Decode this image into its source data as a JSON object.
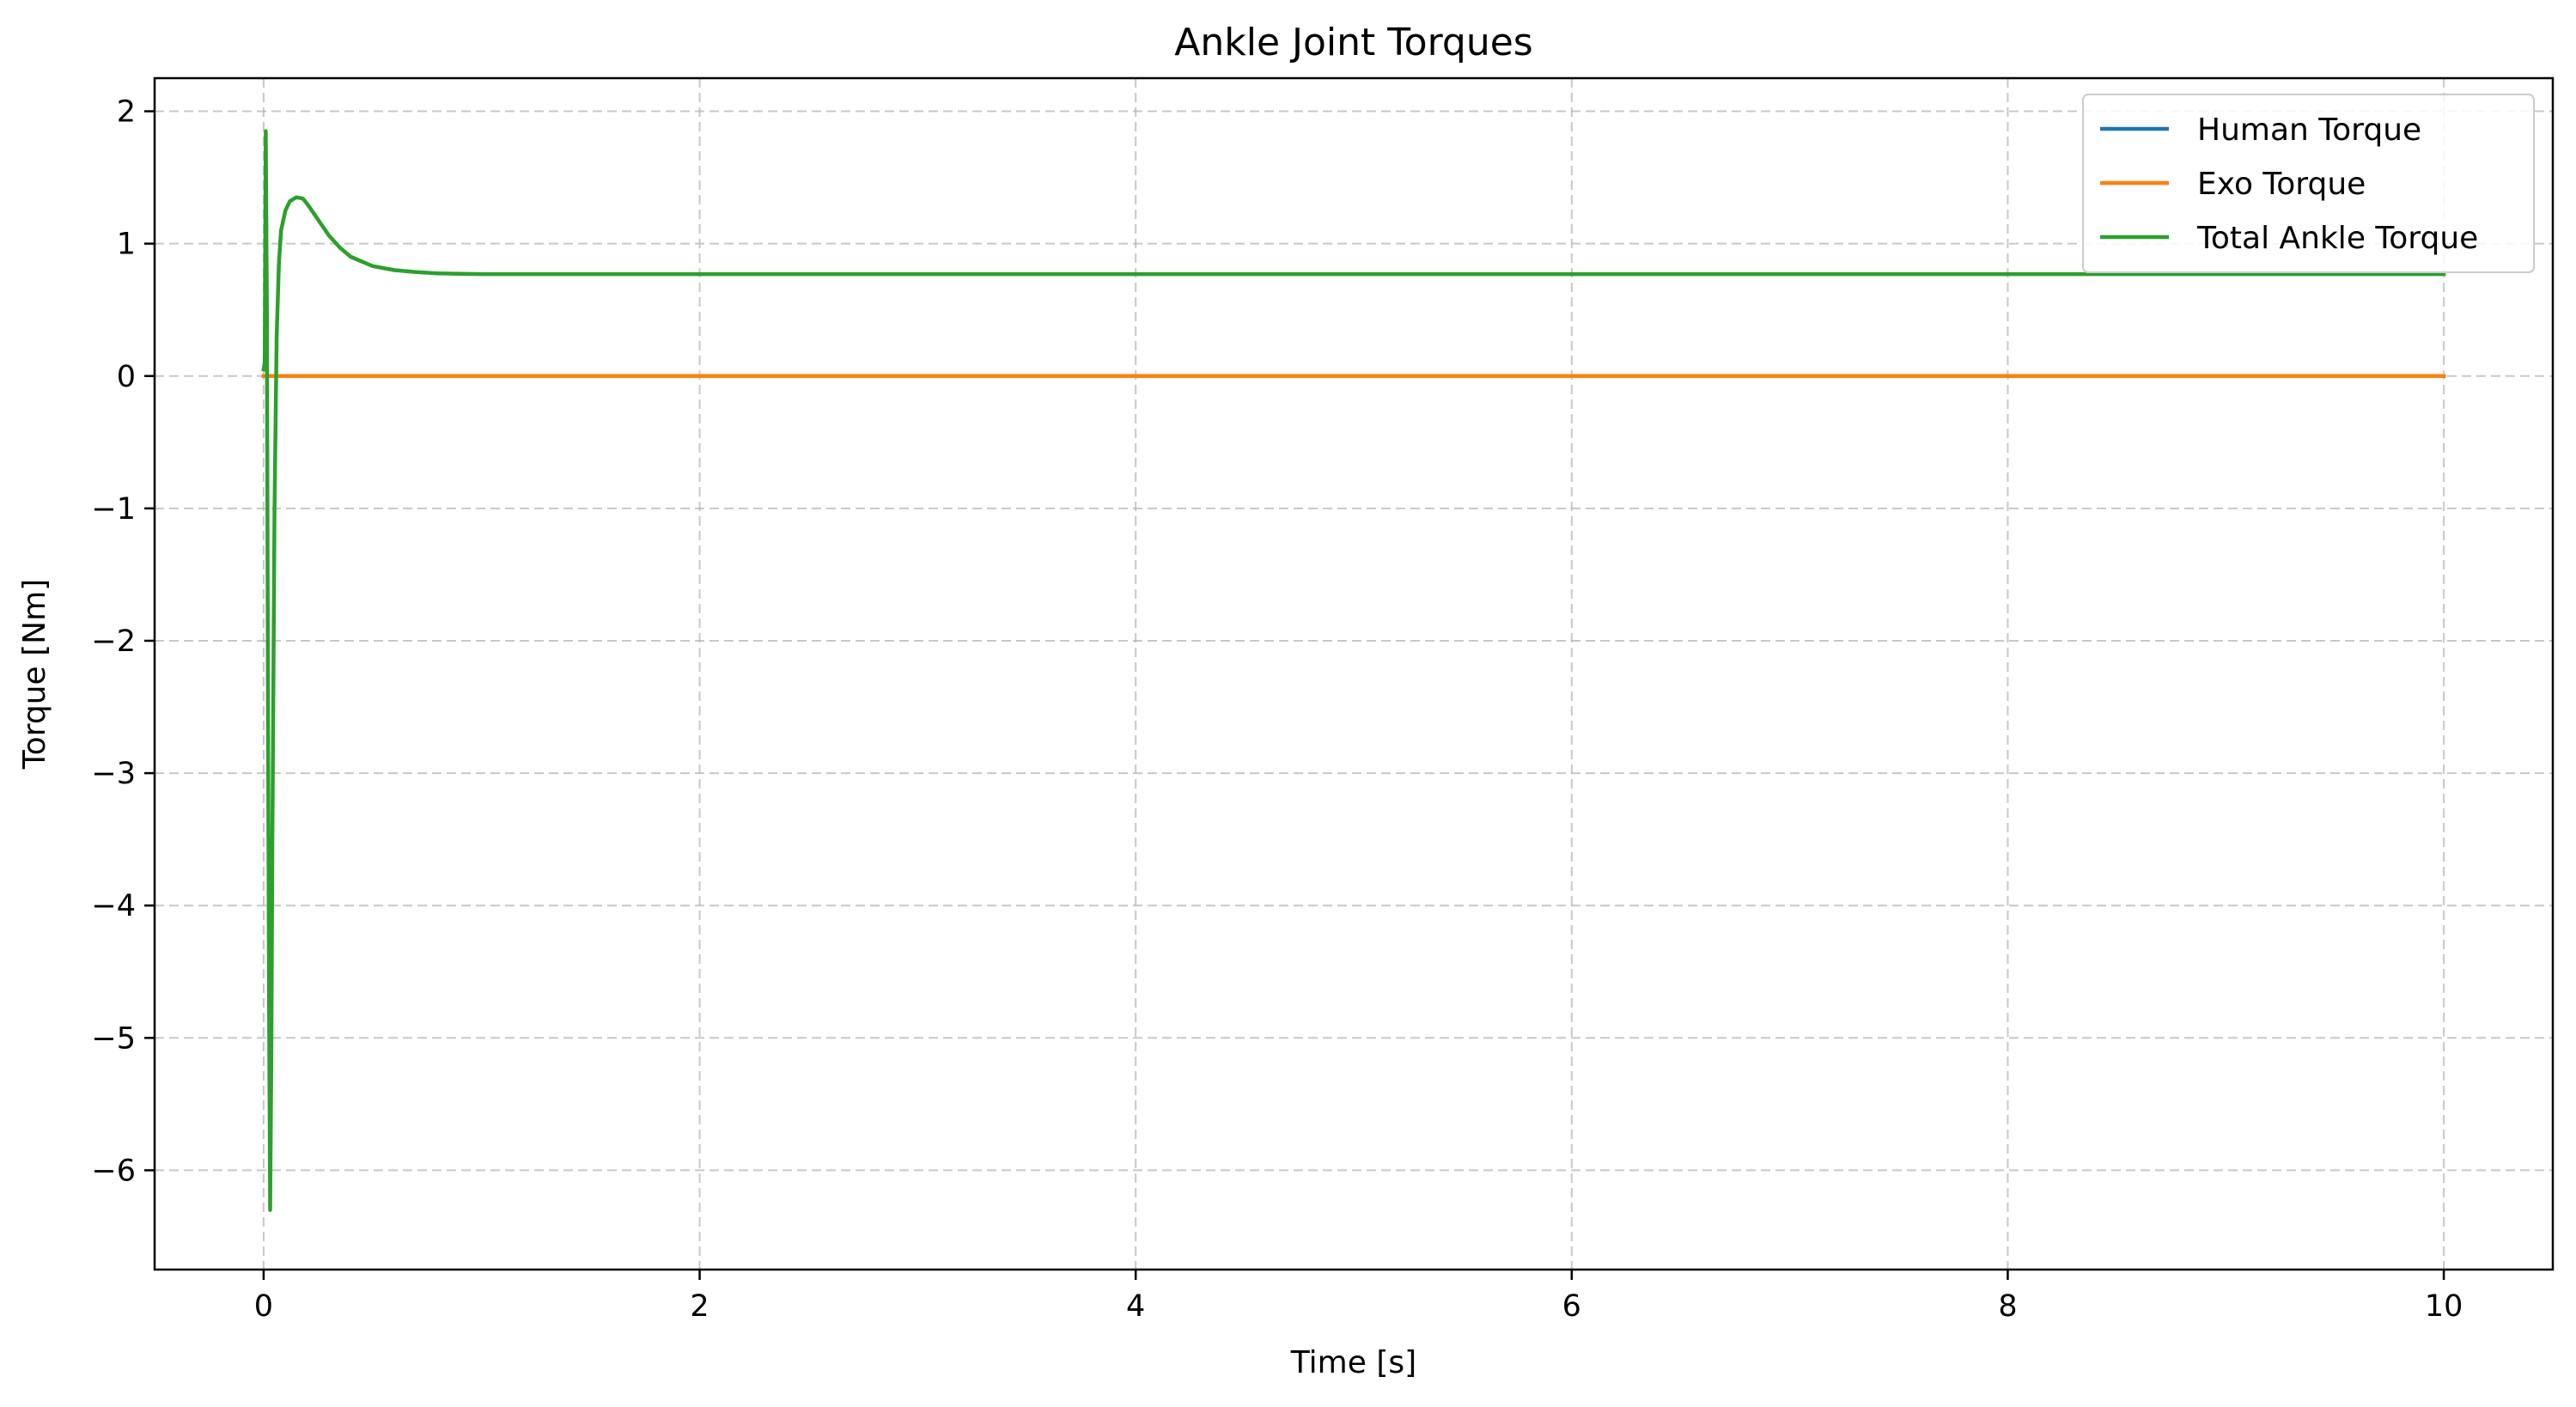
{
  "chart_data": {
    "type": "line",
    "title": "Ankle Joint Torques",
    "xlabel": "Time [s]",
    "ylabel": "Torque [Nm]",
    "xlim": [
      -0.5,
      10.5
    ],
    "ylim": [
      -6.75,
      2.25
    ],
    "xticks": [
      0,
      2,
      4,
      6,
      8,
      10
    ],
    "yticks": [
      -6,
      -5,
      -4,
      -3,
      -2,
      -1,
      0,
      1,
      2
    ],
    "xtick_labels": [
      "0",
      "2",
      "4",
      "6",
      "8",
      "10"
    ],
    "ytick_labels": [
      "−6",
      "−5",
      "−4",
      "−3",
      "−2",
      "−1",
      "0",
      "1",
      "2"
    ],
    "grid": true,
    "legend_position": "top-right",
    "series": [
      {
        "name": "Human Torque",
        "color": "#1f77b4",
        "x": [
          0,
          10
        ],
        "y": [
          0,
          0
        ]
      },
      {
        "name": "Exo Torque",
        "color": "#ff7f0e",
        "x": [
          0,
          10
        ],
        "y": [
          0,
          0
        ]
      },
      {
        "name": "Total Ankle Torque",
        "color": "#2ca02c",
        "x": [
          0,
          0.005,
          0.01,
          0.015,
          0.02,
          0.025,
          0.03,
          0.035,
          0.04,
          0.05,
          0.06,
          0.07,
          0.08,
          0.1,
          0.12,
          0.15,
          0.18,
          0.2,
          0.25,
          0.3,
          0.35,
          0.4,
          0.5,
          0.6,
          0.7,
          0.8,
          0.9,
          1.0,
          1.2,
          1.5,
          2.0,
          3.0,
          5.0,
          7.5,
          10.0
        ],
        "y": [
          0.05,
          0.1,
          1.85,
          0.5,
          -2.5,
          -4.8,
          -6.3,
          -5.2,
          -3.5,
          -1.0,
          0.3,
          0.85,
          1.1,
          1.25,
          1.32,
          1.35,
          1.34,
          1.3,
          1.18,
          1.06,
          0.97,
          0.9,
          0.83,
          0.8,
          0.785,
          0.775,
          0.772,
          0.77,
          0.77,
          0.77,
          0.77,
          0.77,
          0.77,
          0.77,
          0.77
        ]
      }
    ]
  }
}
